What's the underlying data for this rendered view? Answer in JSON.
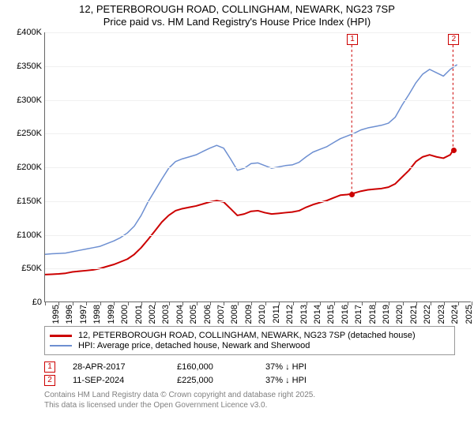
{
  "title": {
    "line1": "12, PETERBOROUGH ROAD, COLLINGHAM, NEWARK, NG23 7SP",
    "line2": "Price paid vs. HM Land Registry's House Price Index (HPI)"
  },
  "chart": {
    "type": "line",
    "background_color": "#ffffff",
    "grid_color": "#f0f0f0",
    "axis_color": "#666666",
    "x": {
      "min": 1995,
      "max": 2026,
      "ticks": [
        1995,
        1996,
        1997,
        1998,
        1999,
        2000,
        2001,
        2002,
        2003,
        2004,
        2005,
        2006,
        2007,
        2008,
        2009,
        2010,
        2011,
        2012,
        2013,
        2014,
        2015,
        2016,
        2017,
        2018,
        2019,
        2020,
        2021,
        2022,
        2023,
        2024,
        2025,
        2026
      ],
      "tick_fontsize": 11,
      "tick_rotation_deg": -90
    },
    "y": {
      "min": 0,
      "max": 400000,
      "ticks": [
        0,
        50000,
        100000,
        150000,
        200000,
        250000,
        300000,
        350000,
        400000
      ],
      "tick_labels": [
        "£0",
        "£50K",
        "£100K",
        "£150K",
        "£200K",
        "£250K",
        "£300K",
        "£350K",
        "£400K"
      ],
      "tick_fontsize": 11
    },
    "series": [
      {
        "id": "price_paid",
        "label": "12, PETERBOROUGH ROAD, COLLINGHAM, NEWARK, NG23 7SP (detached house)",
        "color": "#cc0000",
        "line_width": 2,
        "points": [
          [
            1995.0,
            40000
          ],
          [
            1995.5,
            40500
          ],
          [
            1996.0,
            41000
          ],
          [
            1996.5,
            42000
          ],
          [
            1997.0,
            44000
          ],
          [
            1997.5,
            45000
          ],
          [
            1998.0,
            46000
          ],
          [
            1998.5,
            47000
          ],
          [
            1999.0,
            49000
          ],
          [
            1999.5,
            52000
          ],
          [
            2000.0,
            55000
          ],
          [
            2000.5,
            59000
          ],
          [
            2001.0,
            63000
          ],
          [
            2001.5,
            70000
          ],
          [
            2002.0,
            80000
          ],
          [
            2002.5,
            92000
          ],
          [
            2003.0,
            105000
          ],
          [
            2003.5,
            118000
          ],
          [
            2004.0,
            128000
          ],
          [
            2004.5,
            135000
          ],
          [
            2005.0,
            138000
          ],
          [
            2005.5,
            140000
          ],
          [
            2006.0,
            142000
          ],
          [
            2006.5,
            145000
          ],
          [
            2007.0,
            148000
          ],
          [
            2007.5,
            150000
          ],
          [
            2008.0,
            148000
          ],
          [
            2008.5,
            138000
          ],
          [
            2009.0,
            128000
          ],
          [
            2009.5,
            130000
          ],
          [
            2010.0,
            134000
          ],
          [
            2010.5,
            135000
          ],
          [
            2011.0,
            132000
          ],
          [
            2011.5,
            130000
          ],
          [
            2012.0,
            131000
          ],
          [
            2012.5,
            132000
          ],
          [
            2013.0,
            133000
          ],
          [
            2013.5,
            135000
          ],
          [
            2014.0,
            140000
          ],
          [
            2014.5,
            144000
          ],
          [
            2015.0,
            147000
          ],
          [
            2015.5,
            150000
          ],
          [
            2016.0,
            154000
          ],
          [
            2016.5,
            158000
          ],
          [
            2017.0,
            159000
          ],
          [
            2017.33,
            160000
          ],
          [
            2017.5,
            161000
          ],
          [
            2018.0,
            164000
          ],
          [
            2018.5,
            166000
          ],
          [
            2019.0,
            167000
          ],
          [
            2019.5,
            168000
          ],
          [
            2020.0,
            170000
          ],
          [
            2020.5,
            175000
          ],
          [
            2021.0,
            185000
          ],
          [
            2021.5,
            195000
          ],
          [
            2022.0,
            208000
          ],
          [
            2022.5,
            215000
          ],
          [
            2023.0,
            218000
          ],
          [
            2023.5,
            215000
          ],
          [
            2024.0,
            213000
          ],
          [
            2024.5,
            218000
          ],
          [
            2024.7,
            225000
          ]
        ]
      },
      {
        "id": "hpi",
        "label": "HPI: Average price, detached house, Newark and Sherwood",
        "color": "#6d8fd1",
        "line_width": 1.5,
        "points": [
          [
            1995.0,
            70000
          ],
          [
            1995.5,
            71000
          ],
          [
            1996.0,
            71500
          ],
          [
            1996.5,
            72000
          ],
          [
            1997.0,
            74000
          ],
          [
            1997.5,
            76000
          ],
          [
            1998.0,
            78000
          ],
          [
            1998.5,
            80000
          ],
          [
            1999.0,
            82000
          ],
          [
            1999.5,
            86000
          ],
          [
            2000.0,
            90000
          ],
          [
            2000.5,
            95000
          ],
          [
            2001.0,
            102000
          ],
          [
            2001.5,
            112000
          ],
          [
            2002.0,
            128000
          ],
          [
            2002.5,
            148000
          ],
          [
            2003.0,
            165000
          ],
          [
            2003.5,
            182000
          ],
          [
            2004.0,
            198000
          ],
          [
            2004.5,
            208000
          ],
          [
            2005.0,
            212000
          ],
          [
            2005.5,
            215000
          ],
          [
            2006.0,
            218000
          ],
          [
            2006.5,
            223000
          ],
          [
            2007.0,
            228000
          ],
          [
            2007.5,
            232000
          ],
          [
            2008.0,
            228000
          ],
          [
            2008.5,
            212000
          ],
          [
            2009.0,
            195000
          ],
          [
            2009.5,
            198000
          ],
          [
            2010.0,
            205000
          ],
          [
            2010.5,
            206000
          ],
          [
            2011.0,
            202000
          ],
          [
            2011.5,
            198000
          ],
          [
            2012.0,
            200000
          ],
          [
            2012.5,
            202000
          ],
          [
            2013.0,
            203000
          ],
          [
            2013.5,
            207000
          ],
          [
            2014.0,
            215000
          ],
          [
            2014.5,
            222000
          ],
          [
            2015.0,
            226000
          ],
          [
            2015.5,
            230000
          ],
          [
            2016.0,
            236000
          ],
          [
            2016.5,
            242000
          ],
          [
            2017.0,
            246000
          ],
          [
            2017.5,
            250000
          ],
          [
            2018.0,
            255000
          ],
          [
            2018.5,
            258000
          ],
          [
            2019.0,
            260000
          ],
          [
            2019.5,
            262000
          ],
          [
            2020.0,
            265000
          ],
          [
            2020.5,
            274000
          ],
          [
            2021.0,
            292000
          ],
          [
            2021.5,
            308000
          ],
          [
            2022.0,
            325000
          ],
          [
            2022.5,
            338000
          ],
          [
            2023.0,
            345000
          ],
          [
            2023.5,
            340000
          ],
          [
            2024.0,
            335000
          ],
          [
            2024.5,
            345000
          ],
          [
            2025.0,
            352000
          ]
        ]
      }
    ],
    "sale_markers": [
      {
        "n": 1,
        "year": 2017.33,
        "price": 160000,
        "border_color": "#cc0000"
      },
      {
        "n": 2,
        "year": 2024.7,
        "price": 225000,
        "border_color": "#cc0000"
      }
    ]
  },
  "legend": {
    "items": [
      {
        "color": "#cc0000",
        "thickness": 3,
        "label": "12, PETERBOROUGH ROAD, COLLINGHAM, NEWARK, NG23 7SP (detached house)"
      },
      {
        "color": "#6d8fd1",
        "thickness": 2,
        "label": "HPI: Average price, detached house, Newark and Sherwood"
      }
    ]
  },
  "sales": [
    {
      "n": "1",
      "marker_color": "#cc0000",
      "date": "28-APR-2017",
      "price": "£160,000",
      "delta": "37% ↓ HPI"
    },
    {
      "n": "2",
      "marker_color": "#cc0000",
      "date": "11-SEP-2024",
      "price": "£225,000",
      "delta": "37% ↓ HPI"
    }
  ],
  "footer": {
    "line1": "Contains HM Land Registry data © Crown copyright and database right 2025.",
    "line2": "This data is licensed under the Open Government Licence v3.0."
  }
}
